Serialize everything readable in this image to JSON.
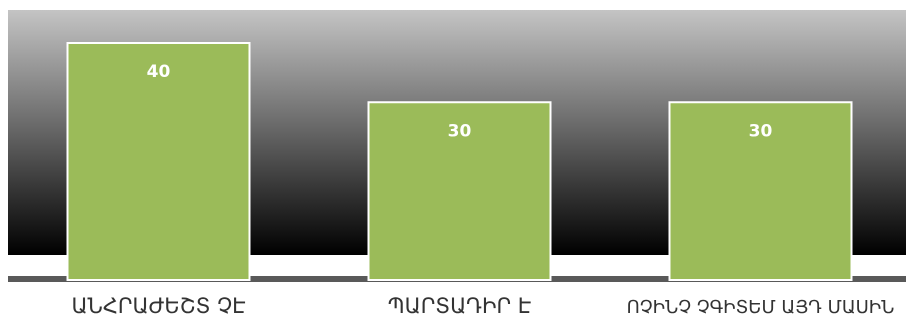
{
  "chart_data": {
    "type": "bar",
    "categories": [
      "ԱՆՀՐԱԺԵՇՏ ՉԷ",
      "ՊԱՐՏԱԴԻՐ Է",
      "ՈՉԻՆՉ ՉԳԻՏԵՄ ԱՅԴ ՄԱՍԻՆ"
    ],
    "values": [
      40,
      30,
      30
    ],
    "data_labels": [
      "40",
      "30",
      "30"
    ],
    "ylim": [
      0,
      40
    ],
    "title": "",
    "xlabel": "",
    "ylabel": "",
    "grid": false,
    "legend": "none",
    "colors": {
      "bar": "#9bbb59",
      "bar_border": "#ffffff",
      "background_top": "#bfbfbf",
      "background_bottom": "#000000",
      "axis": "#595959"
    }
  }
}
